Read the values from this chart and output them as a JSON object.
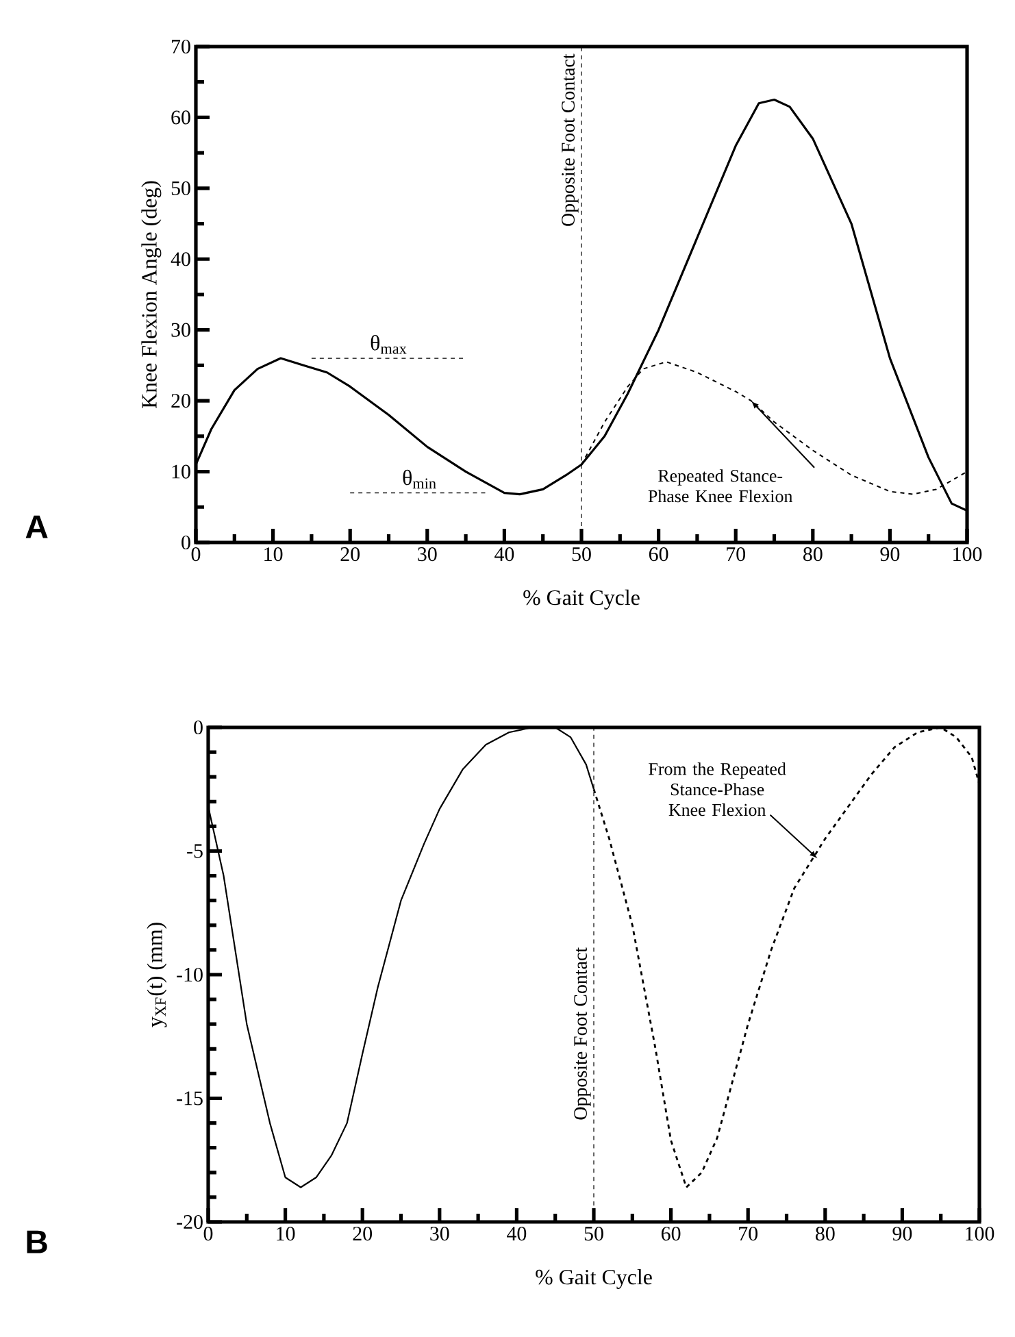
{
  "chart_data": [
    {
      "type": "line",
      "xlabel": "% Gait Cycle",
      "ylabel": "Knee Flexion Angle (deg)",
      "xlim": [
        0,
        100
      ],
      "ylim": [
        0,
        70
      ],
      "xticks": [
        0,
        10,
        20,
        30,
        40,
        50,
        60,
        70,
        80,
        90,
        100
      ],
      "yticks": [
        0,
        10,
        20,
        30,
        40,
        50,
        60,
        70
      ],
      "series": [
        {
          "color": "#000000",
          "line_style": "solid",
          "x": [
            0,
            2,
            5,
            8,
            11,
            14,
            17,
            20,
            25,
            30,
            35,
            40,
            42,
            45,
            48,
            50,
            53,
            56,
            60,
            65,
            70,
            73,
            75,
            77,
            80,
            85,
            90,
            95,
            98,
            100
          ],
          "values": [
            11,
            16,
            21.5,
            24.5,
            26,
            25,
            24,
            22,
            18,
            13.5,
            10,
            7,
            6.8,
            7.5,
            9.5,
            11,
            15,
            21,
            30,
            43,
            56,
            62,
            62.5,
            61.5,
            57,
            45,
            26,
            12,
            5.5,
            4.5
          ]
        },
        {
          "color": "#000000",
          "line_style": "dashed",
          "x": [
            50,
            53,
            56,
            58,
            61,
            65,
            70,
            72,
            75,
            80,
            85,
            90,
            93,
            96,
            100
          ],
          "values": [
            11,
            17,
            22,
            24.5,
            25.5,
            24,
            21.3,
            20,
            17,
            13,
            9.5,
            7.2,
            6.8,
            7.5,
            10
          ]
        },
        {
          "color": "#000000",
          "line_style": "dashed",
          "x": [
            15,
            35
          ],
          "values": [
            26,
            26
          ]
        },
        {
          "color": "#000000",
          "line_style": "dashed",
          "x": [
            20,
            38
          ],
          "values": [
            7,
            7
          ]
        }
      ],
      "ref_lines": [
        {
          "axis": "x",
          "value": 50,
          "label": "Opposite Foot Contact",
          "line_style": "dashed"
        }
      ],
      "annotations": [
        {
          "text": "θ$_{max}$",
          "x": 25,
          "y": 26
        },
        {
          "text": "θ$_{min}$",
          "x": 29,
          "y": 7
        },
        {
          "text": "Repeated Stance-Phase Knee Flexion",
          "x": 72,
          "y": 20
        },
        "A"
      ]
    },
    {
      "type": "line",
      "xlabel": "% Gait Cycle",
      "ylabel": "y$_{XF}$(t) (mm)",
      "xlim": [
        0,
        100
      ],
      "ylim": [
        -20,
        0
      ],
      "xticks": [
        0,
        10,
        20,
        30,
        40,
        50,
        60,
        70,
        80,
        90,
        100
      ],
      "yticks": [
        -20,
        -15,
        -10,
        -5,
        0
      ],
      "series": [
        {
          "color": "#000000",
          "line_style": "solid",
          "x": [
            0,
            2,
            5,
            8,
            10,
            12,
            14,
            16,
            18,
            20,
            22,
            25,
            28,
            30,
            33,
            36,
            39,
            42,
            45,
            47,
            49,
            50
          ],
          "values": [
            -3.2,
            -6,
            -12,
            -16,
            -18.2,
            -18.6,
            -18.2,
            -17.3,
            -16,
            -13.2,
            -10.5,
            -7,
            -4.7,
            -3.3,
            -1.7,
            -0.7,
            -0.2,
            0,
            0,
            -0.4,
            -1.5,
            -2.5
          ]
        },
        {
          "color": "#000000",
          "line_style": "dashed",
          "x": [
            50,
            52,
            55,
            58,
            60,
            62,
            64,
            66,
            68,
            70,
            73,
            76,
            80,
            83,
            86,
            89,
            92,
            95,
            97,
            99,
            100
          ],
          "values": [
            -2.5,
            -4.5,
            -8,
            -13,
            -16.7,
            -18.6,
            -18,
            -16.6,
            -14.3,
            -12,
            -9,
            -6.5,
            -4.5,
            -3.2,
            -1.9,
            -0.8,
            -0.2,
            0,
            -0.4,
            -1.2,
            -2.3
          ]
        }
      ],
      "ref_lines": [
        {
          "axis": "x",
          "value": 50,
          "label": "Opposite Foot Contact",
          "line_style": "dashed"
        }
      ],
      "annotations": [
        {
          "text": "From the Repeated Stance-Phase Knee Flexion",
          "x": 79,
          "y": -5.3
        },
        "B"
      ]
    }
  ]
}
